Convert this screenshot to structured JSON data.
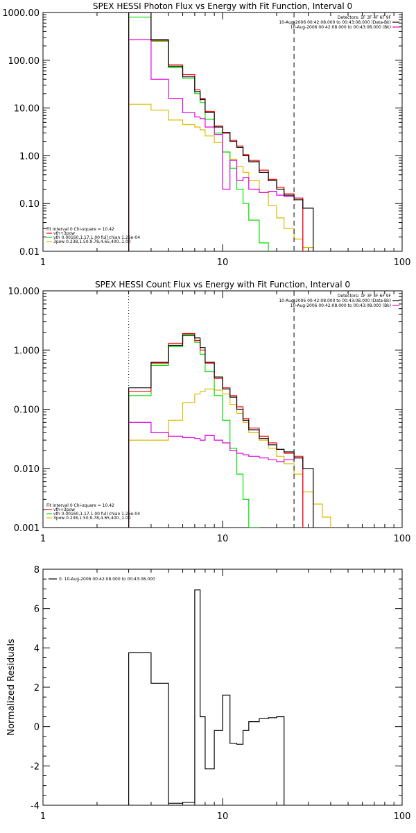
{
  "chart_data": [
    {
      "type": "line",
      "title": "SPEX HESSI Photon Flux vs Energy with Fit Function, Interval 0",
      "xscale": "log",
      "yscale": "log",
      "xlim": [
        1,
        100
      ],
      "ylim": [
        0.01,
        1000
      ],
      "xticks": [
        {
          "v": 1,
          "label": "1"
        },
        {
          "v": 10,
          "label": "10"
        },
        {
          "v": 100,
          "label": "100"
        }
      ],
      "yticks": [
        {
          "v": 0.01,
          "label": "0.01"
        },
        {
          "v": 0.1,
          "label": "0.10"
        },
        {
          "v": 1,
          "label": "1.00"
        },
        {
          "v": 10,
          "label": "10.00"
        },
        {
          "v": 100,
          "label": "100.00"
        },
        {
          "v": 1000,
          "label": "1000.00"
        }
      ],
      "vlines": [
        {
          "x": 3,
          "style": "dotted"
        },
        {
          "x": 25,
          "style": "dashed"
        }
      ],
      "legend_top": [
        "Detectors: 1F 3F 4F 6F 9F",
        "10-Aug-2006 00:42:08.000 to 00:43:08.000 (Data-Bk)",
        "10-Aug-2006 00:42:08.000 to 00:43:08.000 (Bk)"
      ],
      "legend_bottom": [
        "Fit Interval 0   Chi-square = 10.42",
        "vth+3pow",
        "vth 0.00160,1.17,1.00  full chian 1.26e-04",
        "3pow 0.238,1.50,9.78,4.65,400.,1.00"
      ],
      "colors": {
        "data": "#000000",
        "total": "#ff0000",
        "vth": "#00dd00",
        "pow": "#ddbb00",
        "bk": "#dd00dd"
      },
      "edges": [
        3,
        4,
        5,
        6,
        7,
        7.5,
        8,
        9,
        10,
        11,
        12,
        13,
        14,
        16,
        18,
        20,
        22,
        25,
        28,
        32,
        36,
        40,
        45,
        50,
        56,
        63,
        70,
        80,
        90,
        100
      ],
      "series": [
        {
          "key": "data",
          "values": [
            1000,
            270,
            75,
            45,
            22,
            15,
            8,
            4,
            3,
            2,
            1.5,
            1,
            0.75,
            0.45,
            0.3,
            0.2,
            0.15,
            0.12,
            0.08
          ]
        },
        {
          "key": "total",
          "values": [
            1000,
            260,
            80,
            50,
            24,
            16,
            8.5,
            4.2,
            3.1,
            2.1,
            1.6,
            1.05,
            0.8,
            0.5,
            0.32,
            0.22,
            0.16,
            0.13
          ]
        },
        {
          "key": "vth",
          "values": [
            800,
            250,
            70,
            42,
            20,
            13,
            5.8,
            3,
            1.2,
            0.55,
            0.2,
            0.1,
            0.045,
            0.015,
            0.005
          ]
        },
        {
          "key": "pow",
          "values": [
            12,
            9,
            5.6,
            4.5,
            4,
            3.5,
            2.6,
            1.9,
            1.2,
            0.85,
            0.6,
            0.45,
            0.3,
            0.17,
            0.09,
            0.05,
            0.03,
            0.018,
            0.012,
            0.008
          ]
        },
        {
          "key": "bk",
          "values": [
            270,
            40,
            16,
            8,
            6.5,
            6,
            4,
            2.8,
            0.2,
            0.8,
            0.3,
            0.35,
            0.2,
            0.17,
            0.18,
            0.15,
            0.14,
            0.13,
            0.004
          ]
        }
      ]
    },
    {
      "type": "line",
      "title": "SPEX HESSI Count Flux vs Energy with Fit Function, Interval 0",
      "xscale": "log",
      "yscale": "log",
      "xlim": [
        1,
        100
      ],
      "ylim": [
        0.001,
        10
      ],
      "xticks": [
        {
          "v": 1,
          "label": "1"
        },
        {
          "v": 10,
          "label": "10"
        },
        {
          "v": 100,
          "label": "100"
        }
      ],
      "yticks": [
        {
          "v": 0.001,
          "label": "0.001"
        },
        {
          "v": 0.01,
          "label": "0.010"
        },
        {
          "v": 0.1,
          "label": "0.100"
        },
        {
          "v": 1,
          "label": "1.000"
        },
        {
          "v": 10,
          "label": "10.000"
        }
      ],
      "vlines": [
        {
          "x": 3,
          "style": "dotted"
        },
        {
          "x": 25,
          "style": "dashed"
        }
      ],
      "legend_top": [
        "Detectors: 1F 3F 4F 6F 9F",
        "10-Aug-2006 00:42:08.000 to 00:43:08.000 (Data-Bk)",
        "10-Aug-2006 00:42:08.000 to 00:43:08.000 (Bk)"
      ],
      "legend_bottom": [
        "Fit Interval 0   Chi-square = 10.42",
        "vth+3pow",
        "vth 0.00160,1.17,1.00  full chian 1.26e-04",
        "3pow 0.238,1.50,9.78,4.65,400.,1.00"
      ],
      "colors": {
        "data": "#000000",
        "total": "#ff0000",
        "vth": "#00dd00",
        "pow": "#ddbb00",
        "bk": "#dd00dd"
      },
      "edges": [
        3,
        4,
        5,
        6,
        7,
        7.5,
        8,
        9,
        10,
        11,
        12,
        13,
        14,
        16,
        18,
        20,
        22,
        25,
        28,
        32,
        36,
        40,
        45,
        50,
        56,
        63,
        70,
        80,
        90,
        100
      ],
      "series": [
        {
          "key": "data",
          "values": [
            0.23,
            0.62,
            1.2,
            1.8,
            1.6,
            1.1,
            0.62,
            0.35,
            0.22,
            0.16,
            0.1,
            0.065,
            0.045,
            0.032,
            0.025,
            0.021,
            0.019,
            0.015,
            0.01
          ]
        },
        {
          "key": "total",
          "values": [
            0.2,
            0.6,
            1.3,
            1.9,
            1.45,
            1.0,
            0.6,
            0.33,
            0.23,
            0.17,
            0.11,
            0.07,
            0.048,
            0.035,
            0.027,
            0.021,
            0.018,
            0.016
          ]
        },
        {
          "key": "vth",
          "values": [
            0.17,
            0.55,
            1.15,
            1.75,
            1.35,
            0.85,
            0.43,
            0.17,
            0.065,
            0.022,
            0.008,
            0.003,
            0.001,
            0.0005
          ]
        },
        {
          "key": "pow",
          "values": [
            0.03,
            0.03,
            0.065,
            0.13,
            0.18,
            0.2,
            0.22,
            0.21,
            0.18,
            0.12,
            0.085,
            0.06,
            0.04,
            0.03,
            0.022,
            0.016,
            0.012,
            0.008,
            0.004,
            0.0025,
            0.0015,
            0.0009
          ]
        },
        {
          "key": "bk",
          "values": [
            0.06,
            0.04,
            0.035,
            0.033,
            0.032,
            0.03,
            0.036,
            0.03,
            0.027,
            0.02,
            0.018,
            0.017,
            0.016,
            0.015,
            0.014,
            0.013,
            0.014,
            0.015,
            0.0005
          ]
        }
      ]
    },
    {
      "type": "line",
      "title": "",
      "xscale": "log",
      "yscale": "linear",
      "xlim": [
        1,
        100
      ],
      "ylim": [
        -4,
        8
      ],
      "ylabel": "Normalized Residuals",
      "xticks": [
        {
          "v": 1,
          "label": "1"
        },
        {
          "v": 10,
          "label": "10"
        },
        {
          "v": 100,
          "label": "100"
        }
      ],
      "yticks": [
        {
          "v": -4,
          "label": "-4"
        },
        {
          "v": -2,
          "label": "-2"
        },
        {
          "v": 0,
          "label": "0"
        },
        {
          "v": 2,
          "label": "2"
        },
        {
          "v": 4,
          "label": "4"
        },
        {
          "v": 6,
          "label": "6"
        },
        {
          "v": 8,
          "label": "8"
        }
      ],
      "legend_top": [
        "0. 10-Aug-2006 00:42:08.000 to 00:43:08.000"
      ],
      "colors": {
        "data": "#000000"
      },
      "edges": [
        3,
        4,
        5,
        6,
        7,
        7.5,
        8,
        9,
        10,
        11,
        12,
        13,
        14,
        16,
        18,
        20,
        22,
        25
      ],
      "series": [
        {
          "key": "data",
          "values": [
            3.75,
            2.2,
            -3.9,
            -3.85,
            6.95,
            0.5,
            -2.15,
            -0.2,
            1.6,
            -0.85,
            -0.9,
            -0.2,
            0.25,
            0.4,
            0.45,
            0.5
          ]
        }
      ]
    }
  ]
}
